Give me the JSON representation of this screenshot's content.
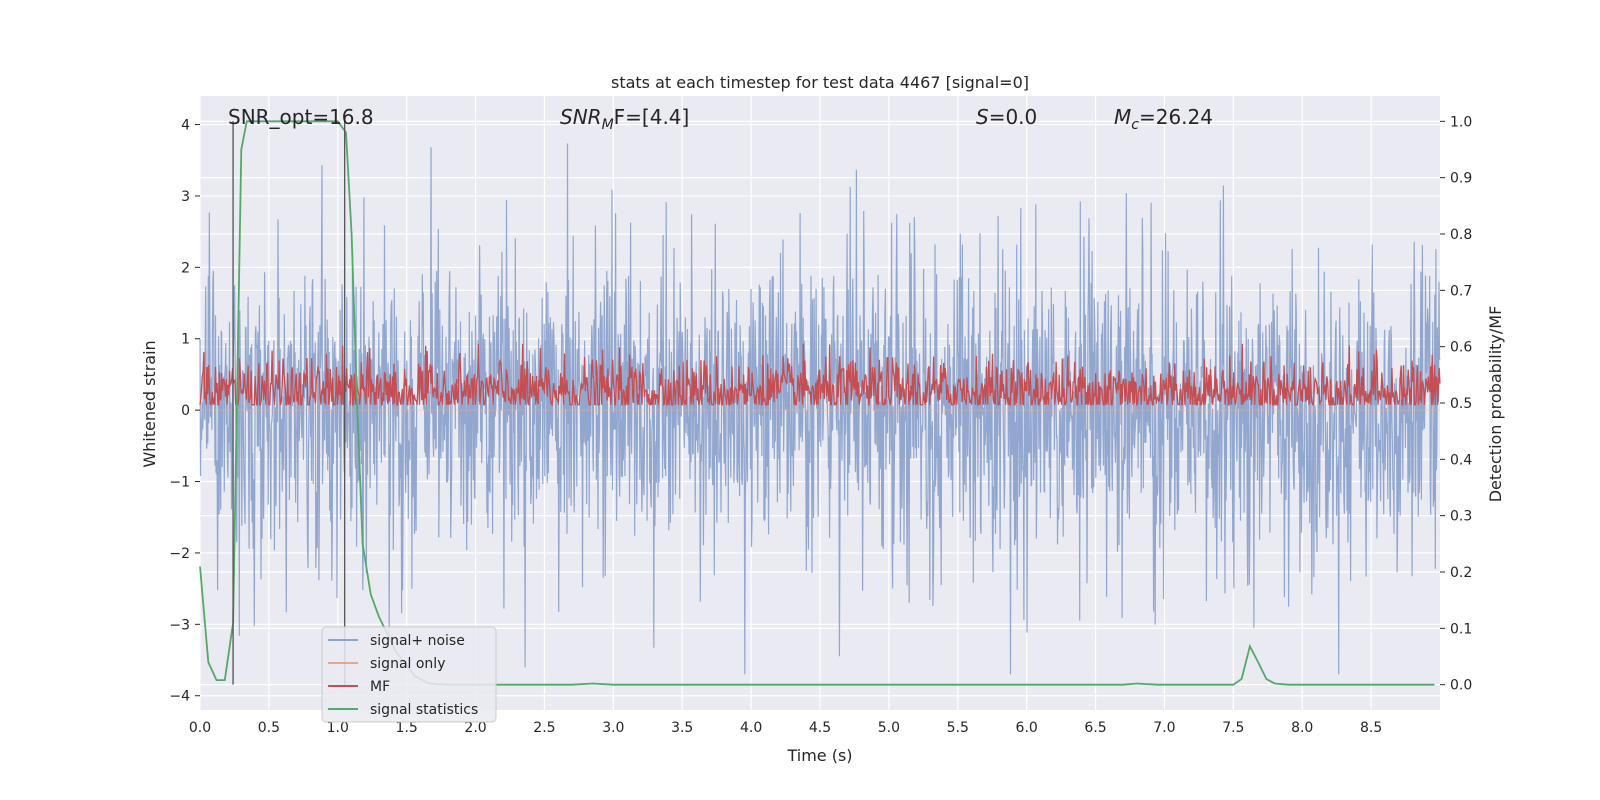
{
  "chart_data": {
    "type": "line",
    "title": "stats at each timestep for test data 4467 [signal=0]",
    "xlabel": "Time (s)",
    "ylabel": "Whitened strain",
    "y2label": "Detection probability/MF",
    "xlim": [
      0.0,
      9.0
    ],
    "ylim": [
      -4.2,
      4.4
    ],
    "y2lim": [
      -0.045,
      1.045
    ],
    "xticks": [
      "0.0",
      "0.5",
      "1.0",
      "1.5",
      "2.0",
      "2.5",
      "3.0",
      "3.5",
      "4.0",
      "4.5",
      "5.0",
      "5.5",
      "6.0",
      "6.5",
      "7.0",
      "7.5",
      "8.0",
      "8.5"
    ],
    "xtick_values": [
      0.0,
      0.5,
      1.0,
      1.5,
      2.0,
      2.5,
      3.0,
      3.5,
      4.0,
      4.5,
      5.0,
      5.5,
      6.0,
      6.5,
      7.0,
      7.5,
      8.0,
      8.5
    ],
    "yticks": [
      "4",
      "3",
      "2",
      "1",
      "0",
      "−1",
      "−2",
      "−3",
      "−4"
    ],
    "ytick_values": [
      4,
      3,
      2,
      1,
      0,
      -1,
      -2,
      -3,
      -4
    ],
    "y2ticks": [
      "1.0",
      "0.9",
      "0.8",
      "0.7",
      "0.6",
      "0.5",
      "0.4",
      "0.3",
      "0.2",
      "0.1",
      "0.0"
    ],
    "y2tick_values": [
      1.0,
      0.9,
      0.8,
      0.7,
      0.6,
      0.5,
      0.4,
      0.3,
      0.2,
      0.1,
      0.0
    ],
    "grid": true,
    "legend_position": "lower-left",
    "annotations": [
      {
        "label": "SNR_opt=16.8"
      },
      {
        "label_main": "SNR",
        "label_sub": "M",
        "label_rest": "F=[4.4]"
      },
      {
        "label_main": "S",
        "label_rest": "=0.0"
      },
      {
        "label_main": "M",
        "label_sub": "c",
        "label_rest": "=26.24"
      }
    ],
    "vlines_x": [
      0.24,
      1.05
    ],
    "series": [
      {
        "name": "signal+ noise",
        "color": "#8da3cc",
        "axis": "left",
        "kind": "noise",
        "amplitude": 2.0
      },
      {
        "name": "signal only",
        "color": "#e6a88c",
        "axis": "left",
        "kind": "flat",
        "y": 0.0
      },
      {
        "name": "MF",
        "color": "#c44e52",
        "axis": "right",
        "kind": "noise",
        "center": 0.52,
        "spread": 0.03
      },
      {
        "name": "signal statistics",
        "color": "#55a868",
        "axis": "right",
        "kind": "line",
        "x": [
          0.0,
          0.06,
          0.12,
          0.18,
          0.24,
          0.3,
          0.34,
          0.45,
          0.6,
          0.75,
          0.9,
          1.0,
          1.06,
          1.1,
          1.14,
          1.18,
          1.24,
          1.3,
          1.36,
          1.42,
          1.48,
          1.56,
          1.66,
          1.8,
          2.0,
          2.4,
          2.7,
          2.85,
          3.0,
          3.5,
          4.0,
          5.0,
          6.0,
          6.5,
          6.7,
          6.8,
          6.95,
          7.2,
          7.4,
          7.5,
          7.56,
          7.62,
          7.68,
          7.74,
          7.8,
          7.9,
          8.1,
          8.5,
          8.96
        ],
        "y": [
          0.21,
          0.04,
          0.008,
          0.008,
          0.11,
          0.95,
          1.0,
          1.0,
          1.0,
          1.0,
          1.0,
          1.0,
          0.98,
          0.8,
          0.5,
          0.25,
          0.16,
          0.12,
          0.09,
          0.06,
          0.04,
          0.015,
          0.002,
          0.0,
          0.0,
          0.0,
          0.0,
          0.002,
          0.0,
          0.0,
          0.0,
          0.0,
          0.0,
          0.0,
          0.0,
          0.002,
          0.0,
          0.0,
          0.0,
          0.0,
          0.01,
          0.068,
          0.04,
          0.01,
          0.002,
          0.0,
          0.0,
          0.0,
          0.0
        ]
      }
    ]
  }
}
